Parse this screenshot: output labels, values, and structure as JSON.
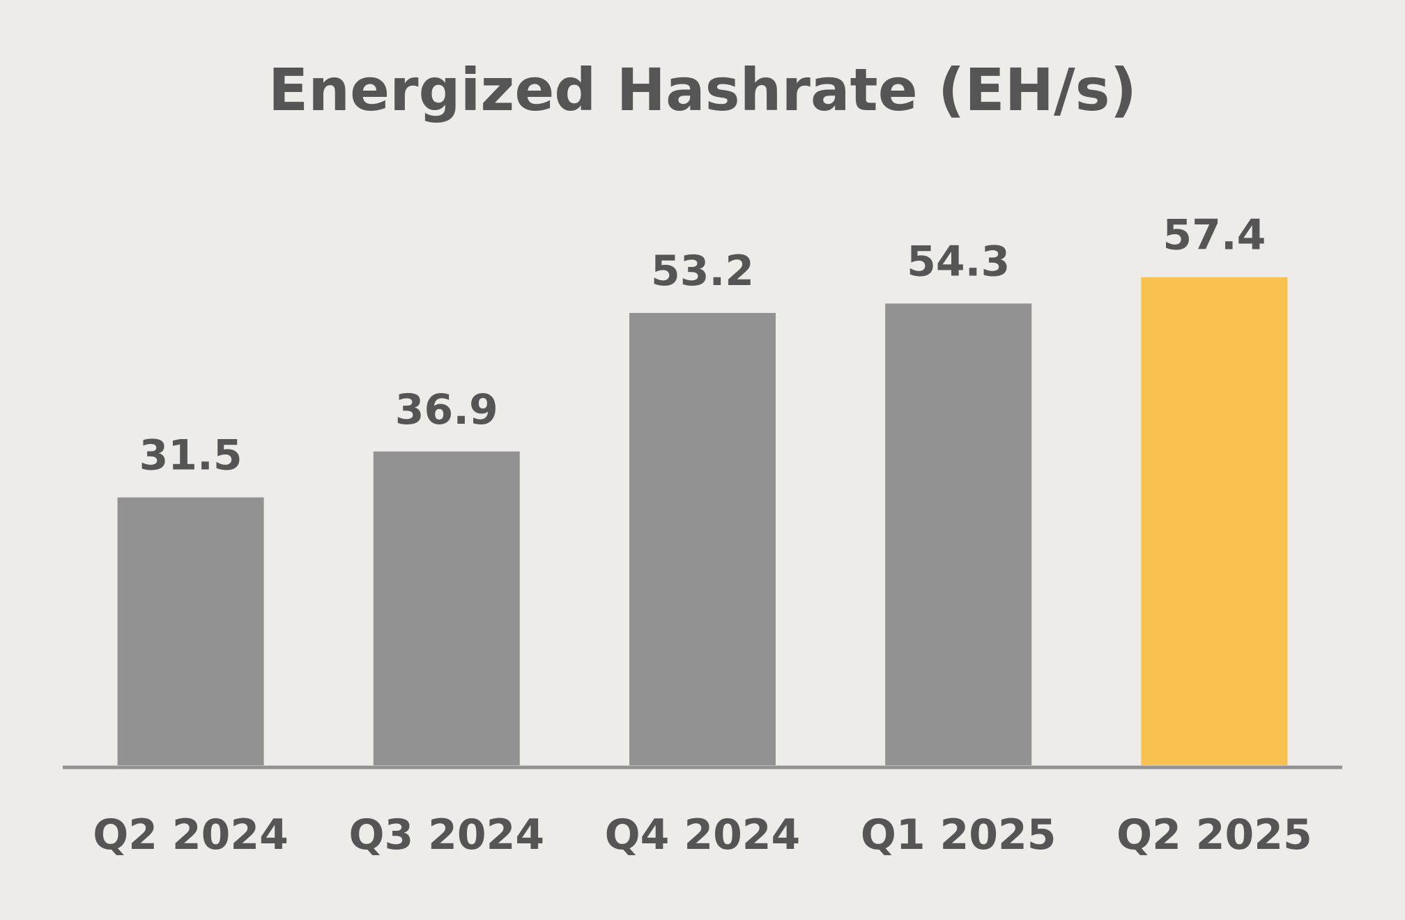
{
  "chart_data": {
    "type": "bar",
    "title": "Energized Hashrate (EH/s)",
    "xlabel": "",
    "ylabel": "",
    "categories": [
      "Q2 2024",
      "Q3 2024",
      "Q4 2024",
      "Q1 2025",
      "Q2 2025"
    ],
    "values": [
      31.5,
      36.9,
      53.2,
      54.3,
      57.4
    ],
    "value_labels": [
      "31.5",
      "36.9",
      "53.2",
      "54.3",
      "57.4"
    ],
    "ylim": [
      0,
      60
    ],
    "grid": false,
    "legend": "none",
    "colors": {
      "background": "#EEECE8",
      "bar_default": "#929292",
      "bar_highlight": "#F9C150",
      "text": "#555555",
      "axis": "#929292"
    },
    "highlight_index": 4
  }
}
